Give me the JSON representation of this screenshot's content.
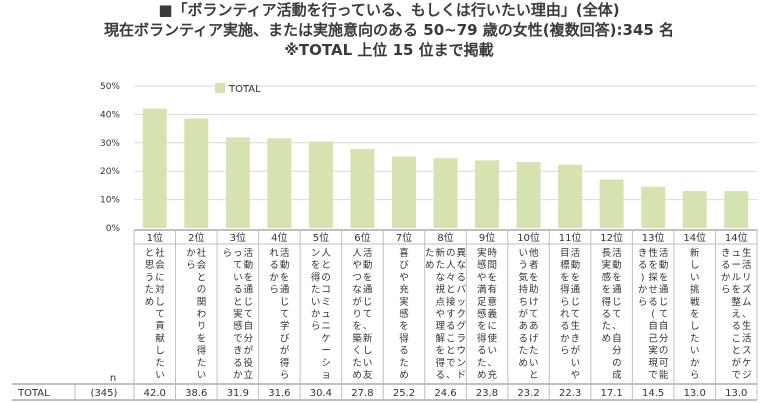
{
  "titles": {
    "line1": "■「ボランティア活動を行っている、もしくは行いたい理由」(全体)",
    "line2": "現在ボランティア実施、または実施意向のある 50~79 歳の女性(複数回答):345 名",
    "line3": "※TOTAL 上位 15 位まで掲載"
  },
  "colors": {
    "bar": "#d6e3b0",
    "axis": "#808080",
    "grid": "#d9d9d9",
    "text": "#333333"
  },
  "chart_data": {
    "type": "bar",
    "legend": {
      "label": "TOTAL",
      "position": "top-left"
    },
    "y_ticks": [
      "0%",
      "10%",
      "20%",
      "30%",
      "40%",
      "50%"
    ],
    "ylim": [
      0,
      50
    ],
    "categories": [
      {
        "rank": "1位",
        "label": "社会に対して貢献したいと思うため"
      },
      {
        "rank": "2位",
        "label": "社会との関わりを得たいから"
      },
      {
        "rank": "3位",
        "label": "活動を通じて自分が役立っていると実感できるから"
      },
      {
        "rank": "4位",
        "label": "活動を通じて学びが得られるから"
      },
      {
        "rank": "5位",
        "label": "人とのコミュニケーションを得たいから"
      },
      {
        "rank": "6位",
        "label": "活動を通じて、新しい友人やつながりを築くため"
      },
      {
        "rank": "7位",
        "label": "喜びや充実感を得るため"
      },
      {
        "rank": "8位",
        "label": "異なるバックグラウンドの人々と接することで、新たな視点や理解を得るため"
      },
      {
        "rank": "9位",
        "label": "時間を有意義に使い、充実感や満足感を得るため"
      },
      {
        "rank": "10位",
        "label": "他者を助けてあげたいという気持ちがあるため"
      },
      {
        "rank": "11位",
        "label": "活動を通じて生きがいや目標を得られるから"
      },
      {
        "rank": "12位",
        "label": "活動を通じて、自分の成長実感を得るため"
      },
      {
        "rank": "13位",
        "label": "活動を通じて自分の可能性を探せる(自己実現できる)から"
      },
      {
        "rank": "14位",
        "label": "新しい挑戦をしたいから"
      },
      {
        "rank": "14位",
        "label": "生活リズム、生活スケジュールを整えることができるから"
      }
    ],
    "values": [
      42.0,
      38.6,
      31.9,
      31.6,
      30.4,
      27.8,
      25.2,
      24.6,
      23.8,
      23.2,
      22.3,
      17.1,
      14.5,
      13.0,
      13.0
    ],
    "value_labels": [
      "42.0",
      "38.6",
      "31.9",
      "31.6",
      "30.4",
      "27.8",
      "25.2",
      "24.6",
      "23.8",
      "23.2",
      "22.3",
      "17.1",
      "14.5",
      "13.0",
      "13.0"
    ],
    "table": {
      "n_header": "n",
      "row_label": "TOTAL",
      "n_value": "(345)"
    }
  }
}
